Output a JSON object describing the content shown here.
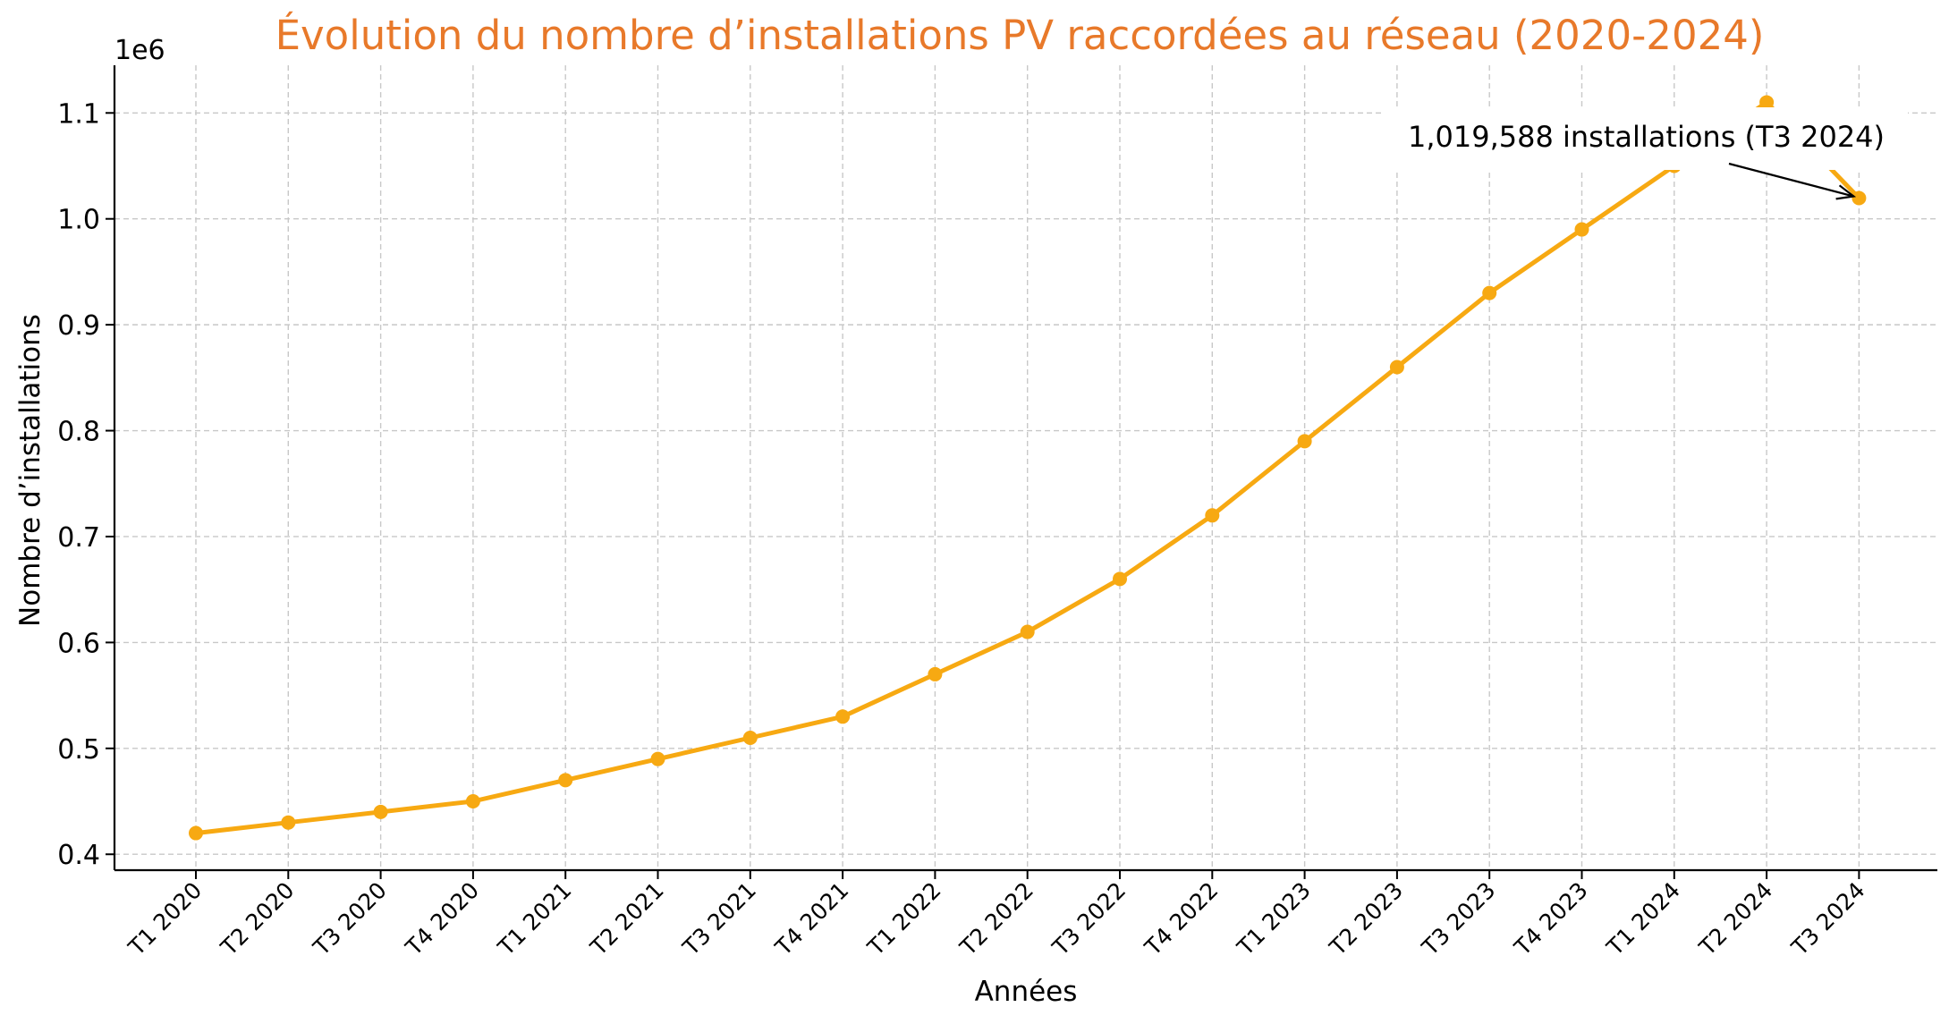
{
  "chart_data": {
    "type": "line",
    "title": "Évolution du nombre d’installations PV raccordées au réseau (2020-2024)",
    "xlabel": "Années",
    "ylabel": "Nombre d’installations",
    "y_offset_label": "1e6",
    "categories": [
      "T1 2020",
      "T2 2020",
      "T3 2020",
      "T4 2020",
      "T1 2021",
      "T2 2021",
      "T3 2021",
      "T4 2021",
      "T1 2022",
      "T2 2022",
      "T3 2022",
      "T4 2022",
      "T1 2023",
      "T2 2023",
      "T3 2023",
      "T4 2023",
      "T1 2024",
      "T2 2024",
      "T3 2024"
    ],
    "series": [
      {
        "values": [
          420000,
          430000,
          440000,
          450000,
          470000,
          490000,
          510000,
          530000,
          570000,
          610000,
          660000,
          720000,
          790000,
          860000,
          930000,
          990000,
          1050000,
          1110000,
          1019588
        ]
      }
    ],
    "ylim": [
      385000,
      1145000
    ],
    "yticks": [
      0.4,
      0.5,
      0.6,
      0.7,
      0.8,
      0.9,
      1.0,
      1.1
    ],
    "ytick_labels": [
      "0.4",
      "0.5",
      "0.6",
      "0.7",
      "0.8",
      "0.9",
      "1.0",
      "1.1"
    ],
    "grid": true,
    "colors": {
      "title": "#e8792a",
      "line": "#f7a912"
    },
    "annotation": {
      "text": "1,019,588 installations (T3 2024)",
      "target_category": "T3 2024",
      "target_value": 1019588
    }
  }
}
